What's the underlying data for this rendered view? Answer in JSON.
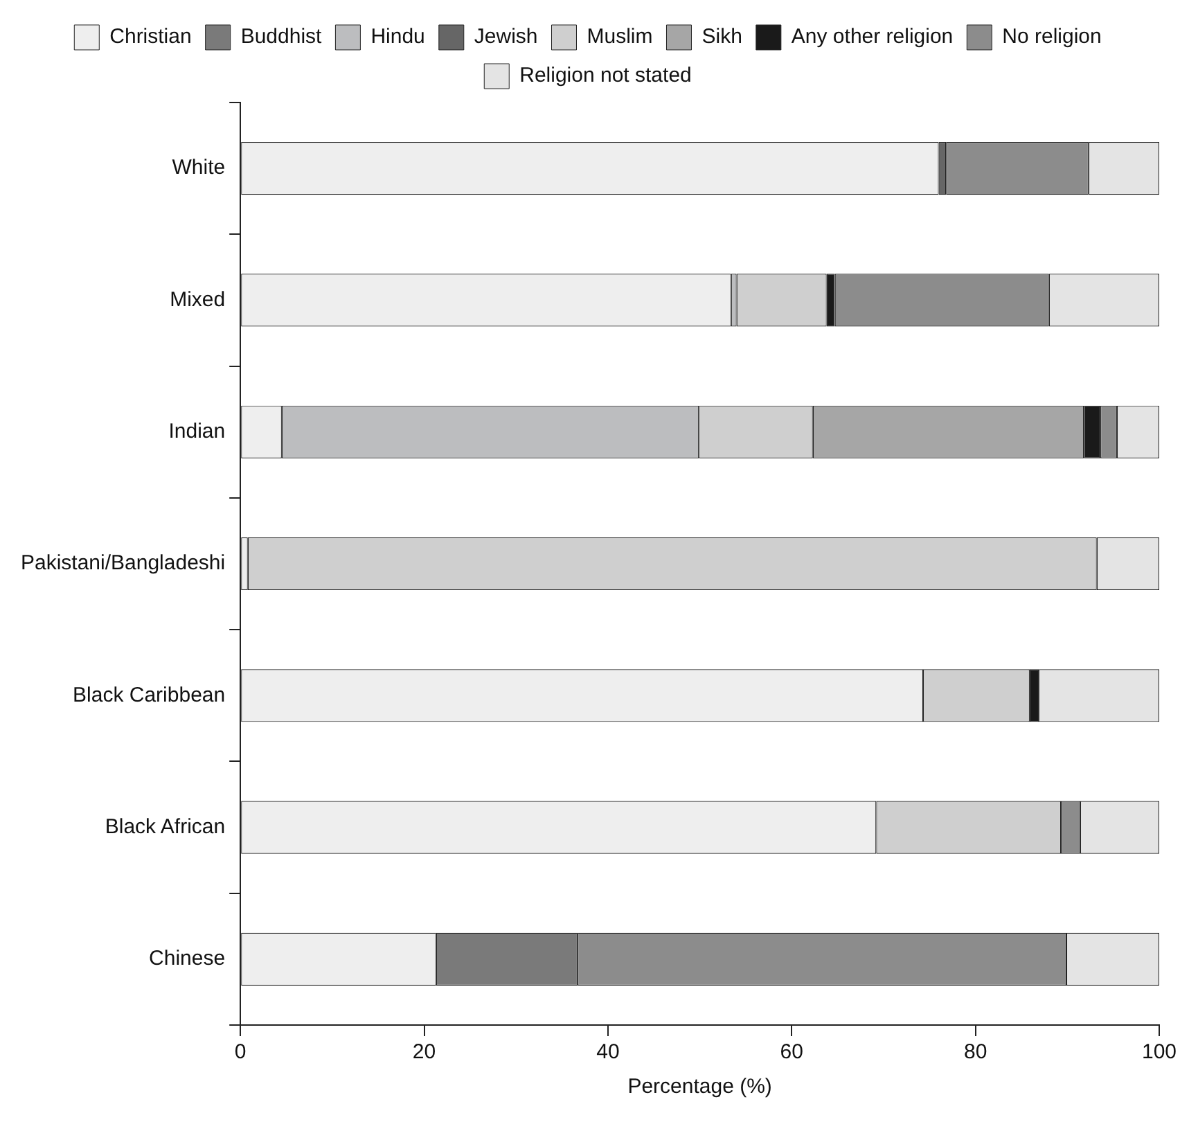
{
  "chart_data": {
    "type": "bar",
    "orientation": "horizontal",
    "stacked": true,
    "xlabel": "Percentage (%)",
    "xlim": [
      0,
      100
    ],
    "xticks": [
      0,
      20,
      40,
      60,
      80,
      100
    ],
    "legend": "top",
    "grid": false,
    "categories": [
      "White",
      "Mixed",
      "Indian",
      "Pakistani/Bangladeshi",
      "Black Caribbean",
      "Black African",
      "Chinese"
    ],
    "series": [
      {
        "name": "Christian",
        "color": "#eeeeee",
        "values": [
          76,
          53.4,
          4.5,
          0.8,
          74.3,
          69.2,
          21.3
        ]
      },
      {
        "name": "Buddhist",
        "color": "#7a7a7a",
        "values": [
          null,
          null,
          null,
          null,
          null,
          null,
          15.4
        ]
      },
      {
        "name": "Hindu",
        "color": "#bcbdbf",
        "values": [
          null,
          0.6,
          45.4,
          null,
          null,
          null,
          null
        ]
      },
      {
        "name": "Jewish",
        "color": "#666666",
        "values": [
          0.8,
          null,
          null,
          null,
          null,
          null,
          null
        ]
      },
      {
        "name": "Muslim",
        "color": "#cfcfcf",
        "values": [
          null,
          9.8,
          12.4,
          92.4,
          11.6,
          20.1,
          null
        ]
      },
      {
        "name": "Sikh",
        "color": "#a6a6a6",
        "values": [
          null,
          null,
          29.5,
          null,
          null,
          null,
          null
        ]
      },
      {
        "name": "Any other religion",
        "color": "#1a1a1a",
        "values": [
          null,
          0.9,
          1.8,
          null,
          1,
          null,
          null
        ]
      },
      {
        "name": "No religion",
        "color": "#8c8c8c",
        "values": [
          15.5,
          23.3,
          1.8,
          null,
          null,
          2.1,
          53.2
        ]
      },
      {
        "name": "Religion not stated",
        "color": "#e4e4e4",
        "values": [
          7.7,
          12,
          4.6,
          6.8,
          13.1,
          8.6,
          10.1
        ]
      }
    ]
  }
}
